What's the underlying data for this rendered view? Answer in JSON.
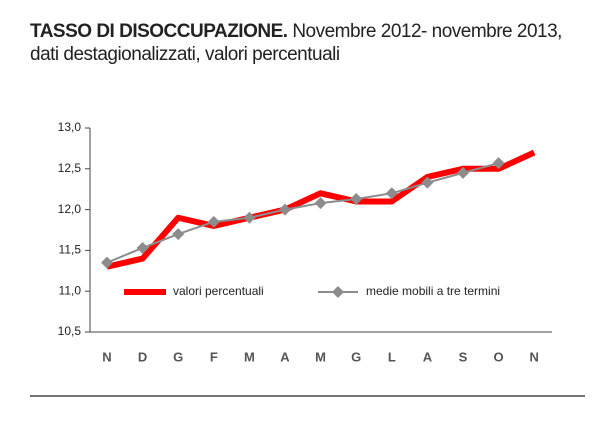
{
  "chart_data": {
    "type": "line",
    "title": "TASSO DI DISOCCUPAZIONE.",
    "subtitle": "Novembre 2012- novembre 2013, dati destagionalizzati, valori percentuali",
    "categories": [
      "N",
      "D",
      "G",
      "F",
      "M",
      "A",
      "M",
      "G",
      "L",
      "A",
      "S",
      "O",
      "N"
    ],
    "series": [
      {
        "name": "valori percentuali",
        "color": "#ff0000",
        "values": [
          11.3,
          11.4,
          11.9,
          11.8,
          11.9,
          12.0,
          12.2,
          12.1,
          12.1,
          12.4,
          12.5,
          12.5,
          12.7
        ]
      },
      {
        "name": "medie mobili a tre termini",
        "color": "#8c8c8c",
        "values": [
          11.35,
          11.53,
          11.7,
          11.85,
          11.9,
          12.0,
          12.08,
          12.13,
          12.2,
          12.33,
          12.45,
          12.57,
          null
        ]
      }
    ],
    "ylim": [
      10.5,
      13.0
    ],
    "yticks": [
      {
        "value": 10.5,
        "label": "10,5"
      },
      {
        "value": 11.0,
        "label": "11,0"
      },
      {
        "value": 11.5,
        "label": "11,5"
      },
      {
        "value": 12.0,
        "label": "12,0"
      },
      {
        "value": 12.5,
        "label": "12,5"
      },
      {
        "value": 13.0,
        "label": "13,0"
      }
    ]
  }
}
